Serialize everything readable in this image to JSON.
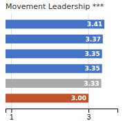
{
  "chart_data": {
    "type": "bar",
    "orientation": "horizontal",
    "title": "Movement Leadership ***",
    "categories": [
      null,
      null,
      null,
      null,
      null,
      null
    ],
    "values": [
      3.41,
      3.37,
      3.35,
      3.35,
      3.33,
      3.0
    ],
    "value_labels": [
      "3.41",
      "3.37",
      "3.35",
      "3.35",
      "3.33",
      "3.00"
    ],
    "colors": [
      "#4472C4",
      "#4472C4",
      "#4472C4",
      "#4472C4",
      "#AAAAAA",
      "#C0522B"
    ],
    "data_labels": true,
    "xlim": [
      0.85,
      3.75
    ],
    "xticks": [
      1,
      3
    ],
    "grid": true,
    "tick_labels": "x"
  }
}
